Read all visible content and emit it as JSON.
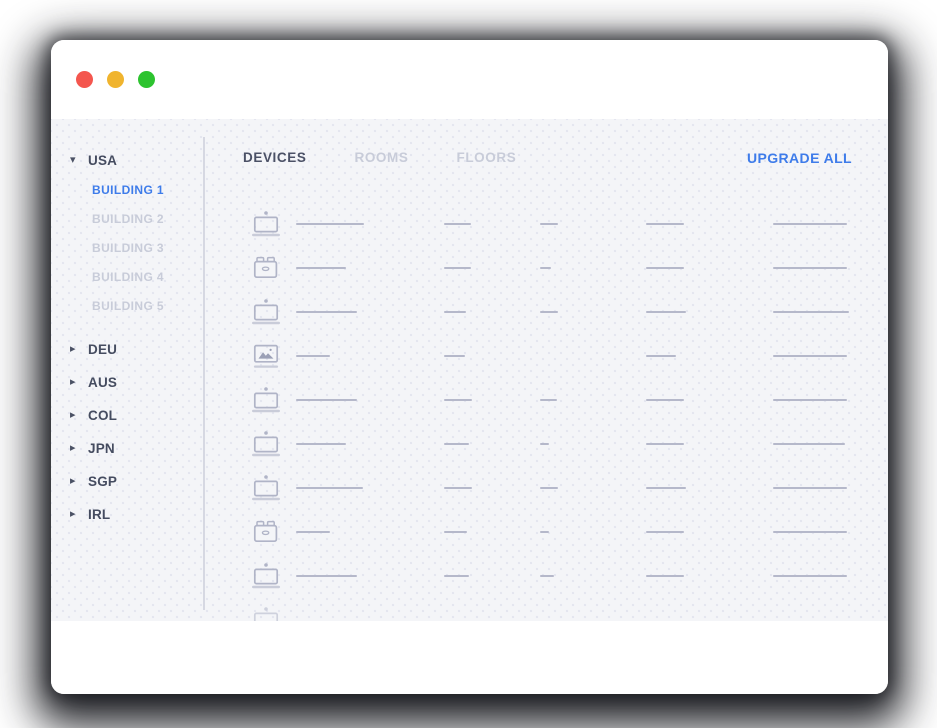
{
  "colors": {
    "accent_blue": "#3e7cea",
    "content_bg": "#f4f5f8",
    "dark_text": "#454c60",
    "muted_text": "#c8ccd9",
    "skeleton_line": "#b5b8ca",
    "divider": "#d6d8e2",
    "traffic_red": "#f4564e",
    "traffic_yellow": "#f0b42e",
    "traffic_green": "#2dc32f"
  },
  "titlebar": {
    "traffic_lights": [
      {
        "name": "close-button",
        "color": "#f4564e"
      },
      {
        "name": "minimize-button",
        "color": "#f0b42e"
      },
      {
        "name": "maximize-button",
        "color": "#2dc32f"
      }
    ]
  },
  "sidebar": {
    "countries": [
      {
        "label": "USA",
        "expanded": true,
        "buildings": [
          {
            "label": "BUILDING 1",
            "active": true
          },
          {
            "label": "BUILDING 2",
            "active": false
          },
          {
            "label": "BUILDING 3",
            "active": false
          },
          {
            "label": "BUILDING 4",
            "active": false
          },
          {
            "label": "BUILDING 5",
            "active": false
          }
        ]
      },
      {
        "label": "DEU",
        "expanded": false
      },
      {
        "label": "AUS",
        "expanded": false
      },
      {
        "label": "COL",
        "expanded": false
      },
      {
        "label": "JPN",
        "expanded": false
      },
      {
        "label": "SGP",
        "expanded": false
      },
      {
        "label": "IRL",
        "expanded": false
      }
    ]
  },
  "main": {
    "tabs": [
      {
        "label": "DEVICES",
        "active": true
      },
      {
        "label": "ROOMS",
        "active": false
      },
      {
        "label": "FLOORS",
        "active": false
      }
    ],
    "upgrade_all_label": "UPGRADE ALL",
    "device_rows": [
      {
        "icon": "laptop-icon",
        "lines": [
          68,
          27,
          18,
          38,
          74
        ]
      },
      {
        "icon": "brick-icon",
        "lines": [
          50,
          27,
          11,
          38,
          74
        ]
      },
      {
        "icon": "laptop-icon",
        "lines": [
          61,
          22,
          18,
          40,
          76
        ]
      },
      {
        "icon": "image-icon",
        "lines": [
          34,
          21,
          0,
          30,
          74
        ]
      },
      {
        "icon": "laptop-icon",
        "lines": [
          61,
          28,
          17,
          38,
          74
        ]
      },
      {
        "icon": "laptop-icon",
        "lines": [
          50,
          25,
          9,
          38,
          72
        ]
      },
      {
        "icon": "laptop-icon",
        "lines": [
          67,
          28,
          18,
          40,
          74
        ]
      },
      {
        "icon": "brick-icon",
        "lines": [
          34,
          23,
          9,
          38,
          74
        ]
      },
      {
        "icon": "laptop-icon",
        "lines": [
          61,
          25,
          14,
          38,
          74
        ]
      },
      {
        "icon": "laptop-icon",
        "lines": [],
        "faded": true
      }
    ]
  }
}
